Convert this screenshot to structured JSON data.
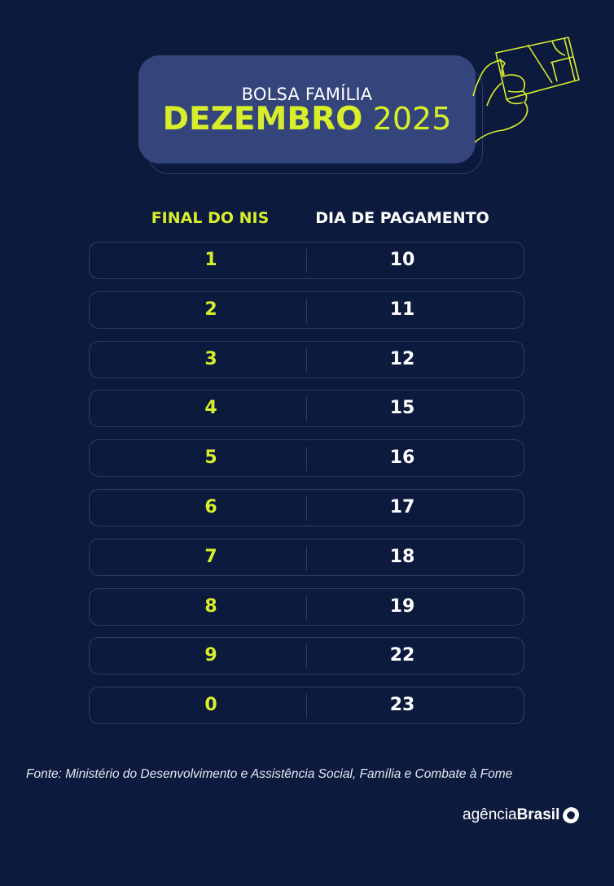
{
  "header": {
    "subtitle": "BOLSA FAMÍLIA",
    "month": "DEZEMBRO",
    "year": "2025"
  },
  "table": {
    "col_nis": "FINAL DO NIS",
    "col_day": "DIA DE PAGAMENTO",
    "rows": [
      {
        "nis": "1",
        "day": "10"
      },
      {
        "nis": "2",
        "day": "11"
      },
      {
        "nis": "3",
        "day": "12"
      },
      {
        "nis": "4",
        "day": "15"
      },
      {
        "nis": "5",
        "day": "16"
      },
      {
        "nis": "6",
        "day": "17"
      },
      {
        "nis": "7",
        "day": "18"
      },
      {
        "nis": "8",
        "day": "19"
      },
      {
        "nis": "9",
        "day": "22"
      },
      {
        "nis": "0",
        "day": "23"
      }
    ]
  },
  "source": "Fonte: Ministério do Desenvolvimento e Assistência Social, Família e Combate à Fome",
  "logo": {
    "light": "agência",
    "bold": "Brasil"
  },
  "colors": {
    "background": "#0c1a3e",
    "accent": "#d9ee2a",
    "header_box": "#33457a",
    "border": "#2b3d70"
  },
  "icons": [
    "hand-holding-card-icon",
    "agencia-brasil-logo-icon"
  ]
}
